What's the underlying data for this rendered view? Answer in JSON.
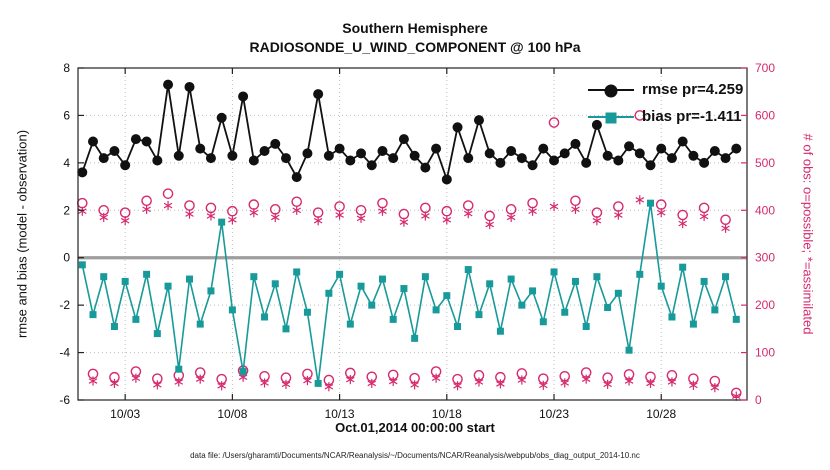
{
  "colors": {
    "rmse": "#111111",
    "bias": "#189a9a",
    "obs_pink": "#d62a6e",
    "zero_line": "#9e9e9e",
    "grid": "#bdbdbd",
    "axis": "#222222"
  },
  "footer": "data file: /Users/gharamti/Documents/NCAR/Reanalysis/~/Documents/NCAR/Reanalysis/webpub/obs_diag_output_2014-10.nc",
  "chart_data": {
    "type": "line",
    "title": "Southern Hemisphere",
    "subtitle": "RADIOSONDE_U_WIND_COMPONENT @ 100 hPa",
    "xlabel": "Oct.01,2014 00:00:00 start",
    "ylabel_left": "rmse and bias (model - observation)",
    "ylabel_right": "# of obs: o=possible; *=assimilated",
    "xlim": [
      0.8,
      32
    ],
    "ylim_left": [
      -6,
      8
    ],
    "ylim_right": [
      0,
      700
    ],
    "grid": true,
    "legend_position": "top-right",
    "x_start_day": 1,
    "x_step_days": 0.5,
    "x_ticks": [
      {
        "day": 3,
        "label": "10/03"
      },
      {
        "day": 8,
        "label": "10/08"
      },
      {
        "day": 13,
        "label": "10/13"
      },
      {
        "day": 18,
        "label": "10/18"
      },
      {
        "day": 23,
        "label": "10/23"
      },
      {
        "day": 28,
        "label": "10/28"
      }
    ],
    "left_ticks": [
      -6,
      -4,
      -2,
      0,
      2,
      4,
      6,
      8
    ],
    "right_ticks": [
      0,
      100,
      200,
      300,
      400,
      500,
      600,
      700
    ],
    "series": [
      {
        "name": "rmse",
        "label": "rmse pr=4.259",
        "color": "#111111",
        "marker": "filled-circle",
        "axis": "left",
        "values": [
          3.6,
          4.9,
          4.2,
          4.5,
          3.9,
          5.0,
          4.9,
          4.1,
          7.3,
          4.3,
          7.2,
          4.6,
          4.2,
          5.9,
          4.3,
          6.8,
          4.1,
          4.5,
          4.8,
          4.2,
          3.4,
          4.4,
          6.9,
          4.3,
          4.6,
          4.1,
          4.4,
          3.9,
          4.5,
          4.2,
          5.0,
          4.3,
          3.8,
          4.6,
          3.3,
          5.5,
          4.2,
          5.8,
          4.4,
          4.0,
          4.5,
          4.2,
          3.9,
          4.6,
          4.1,
          4.4,
          4.8,
          4.0,
          5.6,
          4.3,
          4.1,
          4.7,
          4.4,
          3.9,
          4.6,
          4.2,
          4.9,
          4.3,
          4.0,
          4.5,
          4.2,
          4.6
        ]
      },
      {
        "name": "bias",
        "label": "bias pr=-1.411",
        "color": "#189a9a",
        "marker": "filled-square",
        "axis": "left",
        "values": [
          -0.3,
          -2.4,
          -0.8,
          -2.9,
          -1.0,
          -2.6,
          -0.7,
          -3.2,
          -1.2,
          -4.7,
          -0.9,
          -2.8,
          -1.4,
          1.5,
          -2.2,
          -4.8,
          -0.8,
          -2.5,
          -1.1,
          -3.0,
          -0.6,
          -2.3,
          -5.3,
          -1.5,
          -0.7,
          -2.8,
          -1.2,
          -2.0,
          -0.9,
          -2.6,
          -1.3,
          -3.4,
          -0.8,
          -2.2,
          -1.6,
          -2.9,
          -0.5,
          -2.4,
          -1.1,
          -3.1,
          -0.9,
          -2.0,
          -1.4,
          -2.7,
          -0.6,
          -2.3,
          -1.0,
          -2.9,
          -0.8,
          -2.1,
          -1.5,
          -3.9,
          -0.7,
          2.3,
          -1.2,
          -2.5,
          -0.4,
          -2.8,
          -1.0,
          -2.2,
          -0.8,
          -2.6
        ]
      },
      {
        "name": "possible_obs",
        "label": "o=possible",
        "color": "#d62a6e",
        "marker": "open-circle",
        "axis": "right",
        "values": [
          415,
          55,
          400,
          48,
          395,
          60,
          420,
          45,
          435,
          52,
          410,
          58,
          405,
          44,
          398,
          62,
          412,
          50,
          402,
          47,
          418,
          55,
          395,
          42,
          408,
          57,
          400,
          49,
          415,
          53,
          392,
          46,
          405,
          60,
          398,
          44,
          410,
          52,
          388,
          48,
          402,
          56,
          415,
          45,
          585,
          50,
          420,
          58,
          395,
          47,
          408,
          54,
          600,
          49,
          412,
          52,
          390,
          45,
          405,
          40,
          380,
          15
        ]
      },
      {
        "name": "assimilated_obs",
        "label": "*=assimilated",
        "color": "#d62a6e",
        "marker": "asterisk",
        "axis": "right",
        "values": [
          398,
          40,
          385,
          35,
          378,
          46,
          402,
          32,
          410,
          38,
          392,
          44,
          388,
          30,
          380,
          48,
          395,
          36,
          385,
          33,
          400,
          41,
          378,
          28,
          390,
          43,
          383,
          35,
          398,
          39,
          375,
          32,
          388,
          46,
          380,
          30,
          393,
          38,
          370,
          34,
          385,
          42,
          398,
          31,
          408,
          36,
          402,
          44,
          378,
          33,
          390,
          40,
          422,
          35,
          395,
          38,
          372,
          31,
          387,
          26,
          362,
          8
        ]
      }
    ]
  }
}
